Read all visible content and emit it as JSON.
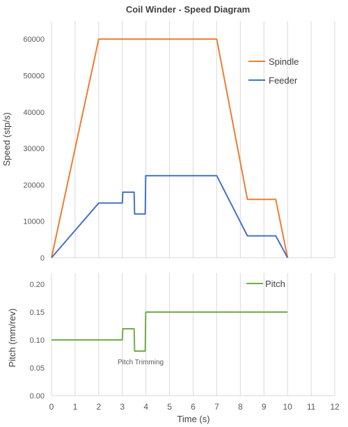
{
  "chart_data": [
    {
      "type": "line",
      "title": "Coil Winder - Speed Diagram",
      "ylabel": "Speed (stp/s)",
      "xlim": [
        0,
        12
      ],
      "ylim": [
        0,
        65000
      ],
      "yticks": [
        "0",
        "10000",
        "20000",
        "30000",
        "40000",
        "50000",
        "60000"
      ],
      "ytick_values": [
        0,
        10000,
        20000,
        30000,
        40000,
        50000,
        60000
      ],
      "grid": "vertical",
      "legend": "right",
      "series": [
        {
          "name": "Spindle",
          "color": "#ed7d31",
          "x": [
            0,
            2,
            7,
            8.3,
            9.5,
            10
          ],
          "y": [
            0,
            60000,
            60000,
            16000,
            16000,
            0
          ]
        },
        {
          "name": "Feeder",
          "color": "#4472c4",
          "x": [
            0,
            2,
            3,
            3.02,
            3.5,
            3.52,
            3.97,
            3.99,
            4.1,
            7,
            8.3,
            9.5,
            10
          ],
          "y": [
            0,
            15000,
            15000,
            18000,
            18000,
            12000,
            12000,
            22500,
            22500,
            22500,
            6000,
            6000,
            0
          ]
        }
      ]
    },
    {
      "type": "line",
      "xlabel": "Time (s)",
      "ylabel": "Pitch (mm/rev)",
      "xlim": [
        0,
        12
      ],
      "xticks": [
        "0",
        "1",
        "2",
        "3",
        "4",
        "5",
        "6",
        "7",
        "8",
        "9",
        "10",
        "11",
        "12"
      ],
      "xtick_values": [
        0,
        1,
        2,
        3,
        4,
        5,
        6,
        7,
        8,
        9,
        10,
        11,
        12
      ],
      "ylim": [
        0,
        0.22
      ],
      "yticks": [
        "0.00",
        "0.05",
        "0.10",
        "0.15",
        "0.20"
      ],
      "ytick_values": [
        0,
        0.05,
        0.1,
        0.15,
        0.2
      ],
      "grid": "vertical",
      "legend": "top-right",
      "annotation": "Pitch Trimming",
      "series": [
        {
          "name": "Pitch",
          "color": "#70ad47",
          "x": [
            0,
            3,
            3.02,
            3.5,
            3.52,
            3.97,
            3.99,
            10
          ],
          "y": [
            0.1,
            0.1,
            0.12,
            0.12,
            0.08,
            0.08,
            0.15,
            0.15
          ]
        }
      ]
    }
  ]
}
